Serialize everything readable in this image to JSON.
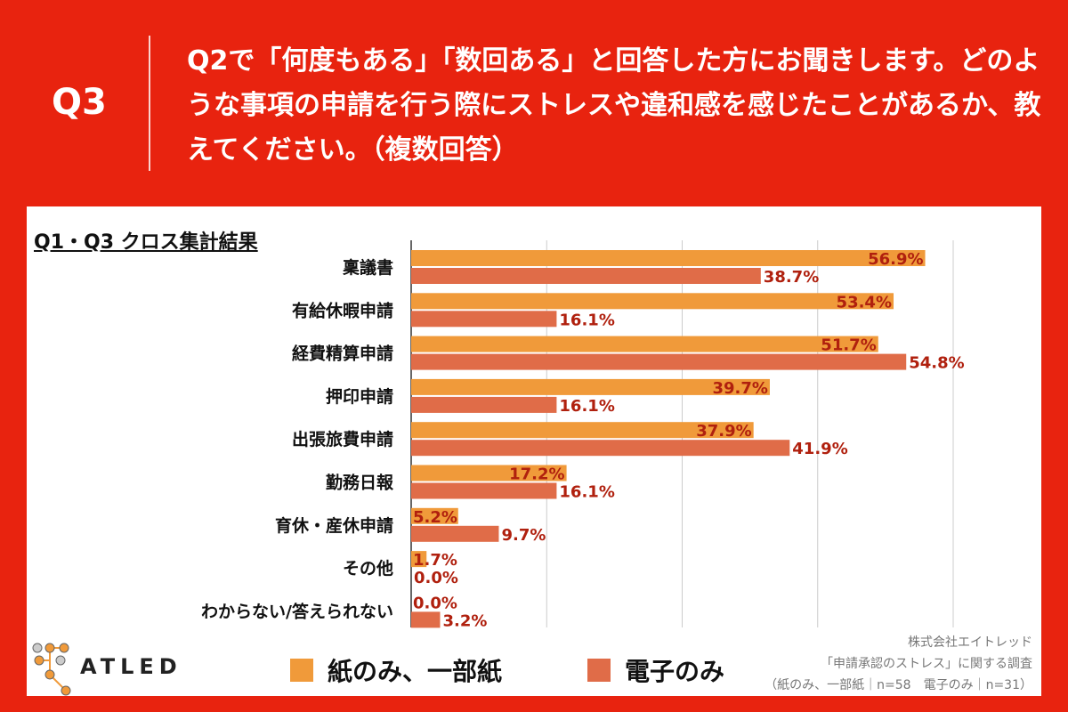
{
  "header": {
    "number": "Q3",
    "question": "Q2で「何度もある」「数回ある」と回答した方にお聞きします。どのような事項の申請を行う際にストレスや違和感を感じたことがあるか、教えてください。（複数回答）"
  },
  "colors": {
    "background": "#e8230f",
    "paper": "#f09a3a",
    "digital": "#e06c48",
    "label": "#b0200e"
  },
  "chart_data": {
    "type": "bar",
    "orientation": "horizontal",
    "title": "Q1・Q3 クロス集計結果",
    "categories": [
      "稟議書",
      "有給休暇申請",
      "経費精算申請",
      "押印申請",
      "出張旅費申請",
      "勤務日報",
      "育休・産休申請",
      "その他",
      "わからない/答えられない"
    ],
    "series": [
      {
        "name": "紙のみ、一部紙",
        "values": [
          56.9,
          53.4,
          51.7,
          39.7,
          37.9,
          17.2,
          5.2,
          1.7,
          0.0
        ]
      },
      {
        "name": "電子のみ",
        "values": [
          38.7,
          16.1,
          54.8,
          16.1,
          41.9,
          16.1,
          9.7,
          0.0,
          3.2
        ]
      }
    ],
    "xlim": [
      0,
      60
    ],
    "grid": true,
    "unit": "%",
    "legend": "bottom"
  },
  "logo": {
    "text": "ATLED"
  },
  "source": {
    "line1": "株式会社エイトレッド",
    "line2": "「申請承認のストレス」に関する調査",
    "line3": "（紙のみ、一部紙｜n=58　電子のみ｜n=31）"
  }
}
